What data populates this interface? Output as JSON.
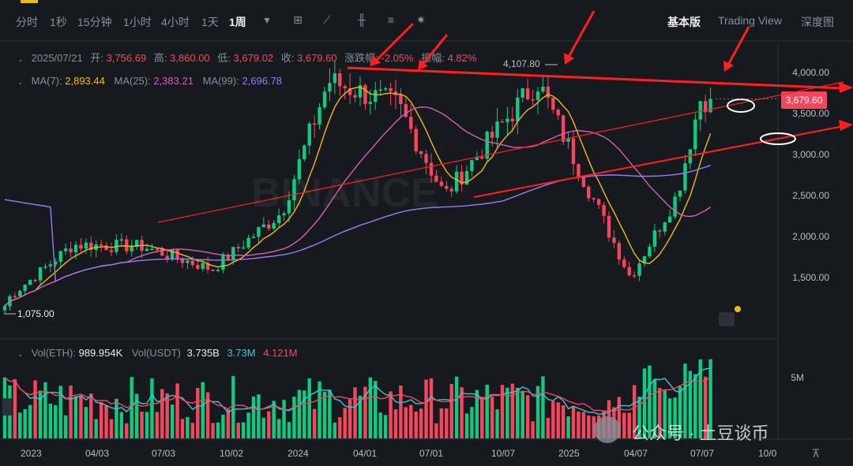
{
  "timeframes": [
    "分时",
    "1秒",
    "15分钟",
    "1小时",
    "4小时",
    "1天",
    "1周"
  ],
  "active_timeframe": "1周",
  "tools": [
    "dropdown-icon",
    "chart-type-icon",
    "indicator-icon",
    "candlestick-icon",
    "drawing-icon",
    "settings-icon"
  ],
  "views": {
    "basic": "基本版",
    "tradingview": "Trading View",
    "depth": "深度图"
  },
  "ohlc": {
    "date": "2025/07/21",
    "open_label": "开:",
    "open": "3,756.69",
    "high_label": "高:",
    "high": "3,860.00",
    "low_label": "低:",
    "low": "3,679.02",
    "close_label": "收:",
    "close": "3,679.60",
    "change_label": "涨跌幅:",
    "change": "-2.05%",
    "amp_label": "振幅:",
    "amp": "4.82%"
  },
  "ma": {
    "ma7_label": "MA(7):",
    "ma7": "2,893.44",
    "ma25_label": "MA(25):",
    "ma25": "2,383.21",
    "ma99_label": "MA(99):",
    "ma99": "2,696.78"
  },
  "vol": {
    "eth_label": "Vol(ETH):",
    "eth": "989.954K",
    "usdt_label": "Vol(USDT)",
    "usdt": "3.735B",
    "ma1": "3.73M",
    "ma2": "4.121M"
  },
  "price_axis": [
    "4,000.00",
    "3,500.00",
    "3,000.00",
    "2,500.00",
    "2,000.00",
    "1,500.00"
  ],
  "vol_axis": [
    "5M"
  ],
  "current_price": "3,679.60",
  "low_annotation": "1,075.00",
  "high_annotation": "4,107.80",
  "date_axis": [
    "2023",
    "04/03",
    "07/03",
    "10/02",
    "2024",
    "04/01",
    "07/01",
    "10/07",
    "2025",
    "04/07",
    "07/07",
    "10/0"
  ],
  "watermark": {
    "brand": "BINANCE",
    "account": "公众号 · 土豆谈币"
  },
  "colors": {
    "up": "#0ecb81",
    "down": "#f6465d",
    "ma7": "#f0b90b",
    "ma25": "#d660b5",
    "ma99": "#9b7cf5",
    "annotation": "#ff1f1f"
  },
  "chart_data": {
    "type": "candlestick",
    "interval": "1w",
    "ylim": [
      1000,
      4300
    ],
    "y_ticks": [
      1500,
      2000,
      2500,
      3000,
      3500,
      4000
    ],
    "price_anchors": [
      {
        "date": "2023-01",
        "price": 1200
      },
      {
        "date": "2023-04",
        "price": 1900
      },
      {
        "date": "2023-07",
        "price": 1880
      },
      {
        "date": "2023-10",
        "price": 1600
      },
      {
        "date": "2024-01",
        "price": 2300
      },
      {
        "date": "2024-03",
        "price": 3900
      },
      {
        "date": "2024-06",
        "price": 3600
      },
      {
        "date": "2024-08",
        "price": 2500
      },
      {
        "date": "2024-12",
        "price": 3900
      },
      {
        "date": "2025-02",
        "price": 2700
      },
      {
        "date": "2025-04",
        "price": 1500
      },
      {
        "date": "2025-06",
        "price": 2500
      },
      {
        "date": "2025-07",
        "price": 3680
      }
    ],
    "volume_ylim": [
      0,
      7000000
    ],
    "notable": {
      "low": 1075.0,
      "high": 4107.8,
      "last": 3679.6
    }
  }
}
